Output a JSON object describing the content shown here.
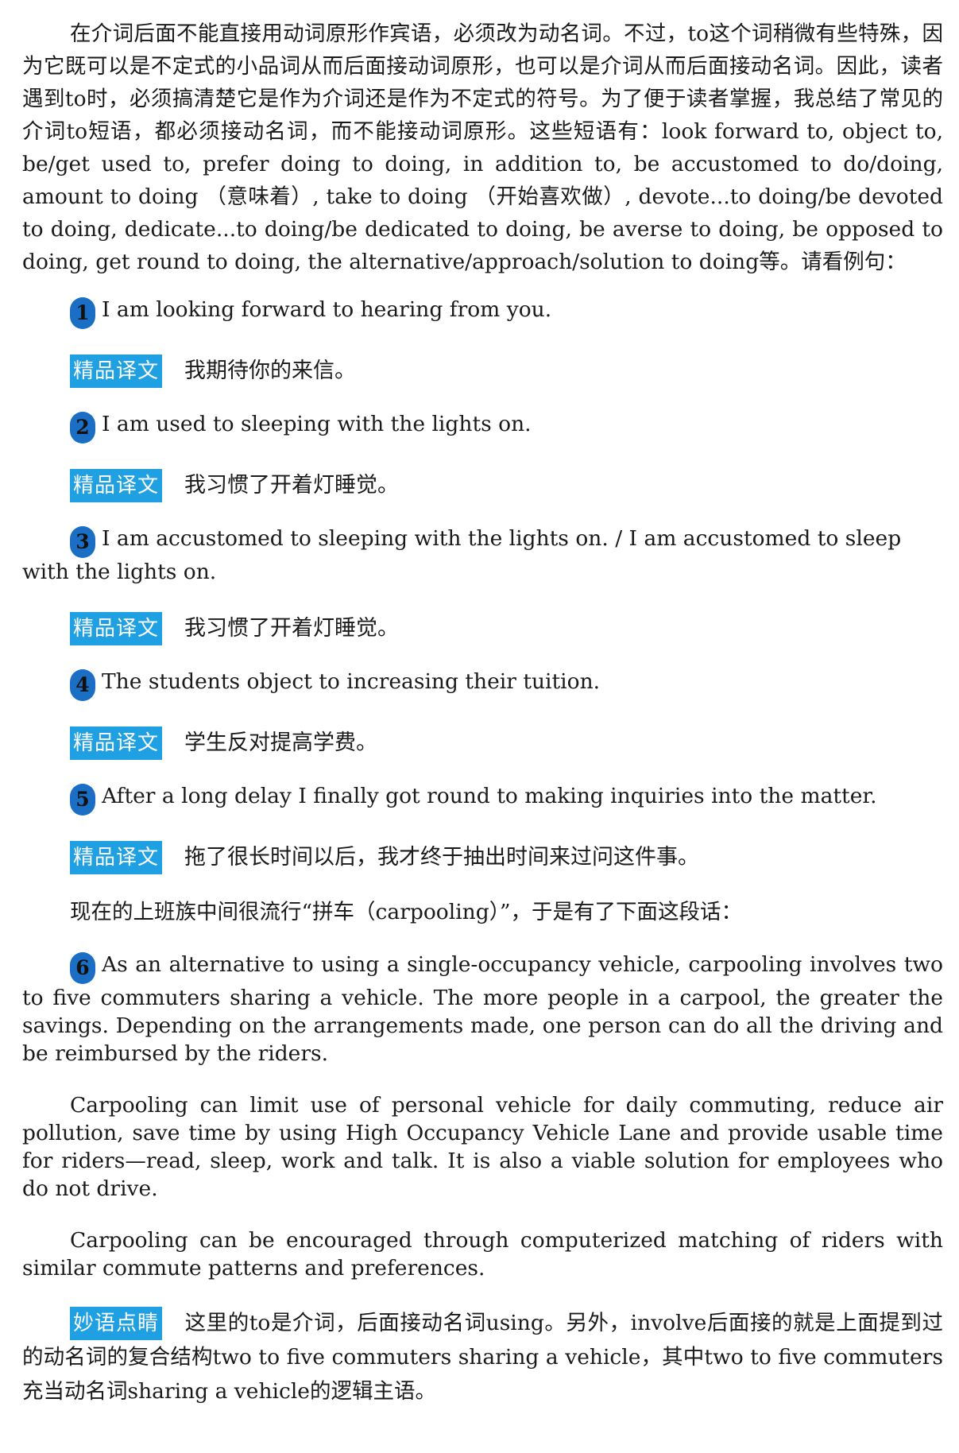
{
  "intro": "在介词后面不能直接用动词原形作宾语，必须改为动名词。不过，to这个词稍微有些特殊，因为它既可以是不定式的小品词从而后面接动词原形，也可以是介词从而后面接动名词。因此，读者遇到to时，必须搞清楚它是作为介词还是作为不定式的符号。为了便于读者掌握，我总结了常见的介词to短语，都必须接动名词，而不能接动词原形。这些短语有：look forward to, object to, be/get used to, prefer doing to doing, in addition to, be accustomed to do/doing, amount to doing （意味着）, take to doing （开始喜欢做）, devote...to doing/be devoted to doing, dedicate...to doing/be dedicated to doing, be averse to doing, be opposed to doing, get round to doing, the alternative/approach/solution to doing等。请看例句：",
  "translation_tag": "精品译文",
  "examples": [
    {
      "num": "1",
      "text": "I am looking forward to hearing from you.",
      "translation": "我期待你的来信。"
    },
    {
      "num": "2",
      "text": "I am used to sleeping with the lights on.",
      "translation": "我习惯了开着灯睡觉。"
    },
    {
      "num": "3",
      "text": "I am accustomed to sleeping with the lights on. / I am accustomed to sleep with the lights on.",
      "translation": "我习惯了开着灯睡觉。"
    },
    {
      "num": "4",
      "text": "The students object to increasing their tuition.",
      "translation": "学生反对提高学费。"
    },
    {
      "num": "5",
      "text": "After a long delay I finally got round to making inquiries into the matter.",
      "translation": "拖了很长时间以后，我才终于抽出时间来过问这件事。"
    }
  ],
  "carpool_intro": "现在的上班族中间很流行“拼车（carpooling）”，于是有了下面这段话：",
  "example6": {
    "num": "6",
    "text": "As an alternative to using a single-occupancy vehicle, carpooling involves two to five commuters sharing a vehicle. The more people in a carpool, the greater the savings. Depending on the arrangements made, one person can do all the driving and be reimbursed by the riders."
  },
  "para2": "Carpooling can limit use of personal vehicle for daily commuting, reduce air pollution, save time by using High Occupancy Vehicle Lane and provide usable time for riders—read, sleep, work and talk. It is also a viable solution for employees who do not drive.",
  "para3": "Carpooling can be encouraged through computerized matching of riders with similar commute patterns and preferences.",
  "note": {
    "tag": "妙语点睛",
    "text": "这里的to是介词，后面接动名词using。另外，involve后面接的就是上面提到过的动名词的复合结构two to five commuters sharing a vehicle，其中two to five commuters充当动名词sharing a vehicle的逻辑主语。"
  },
  "colors": {
    "tag_bg": "#1fa0e2",
    "number_badge": "#1a6fc4",
    "text": "#1a1a1a"
  }
}
